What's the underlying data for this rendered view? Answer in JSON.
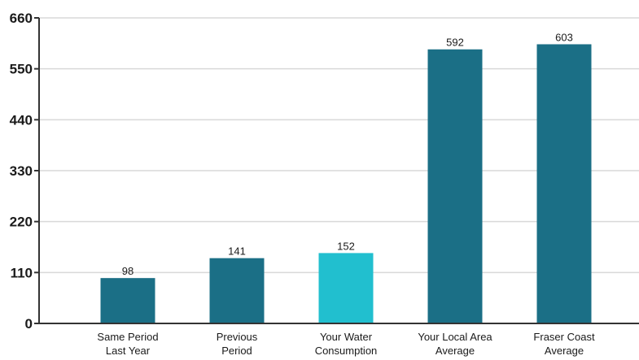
{
  "chart_data": {
    "type": "bar",
    "categories": [
      [
        "Same Period",
        "Last Year"
      ],
      [
        "Previous",
        "Period"
      ],
      [
        "Your Water",
        "Consumption"
      ],
      [
        "Your Local Area",
        "Average"
      ],
      [
        "Fraser Coast",
        "Average"
      ]
    ],
    "values": [
      98,
      141,
      152,
      592,
      603
    ],
    "value_labels": [
      "98",
      "141",
      "152",
      "592",
      "603"
    ],
    "yticks": [
      0,
      110,
      220,
      330,
      440,
      550,
      660
    ],
    "ytick_labels": [
      "0",
      "110",
      "220",
      "330",
      "440",
      "550",
      "660"
    ],
    "ylim": [
      0,
      660
    ],
    "grid": true,
    "title": "",
    "xlabel": "",
    "ylabel": "",
    "colors": {
      "bar": "#1b6f86",
      "highlight": "#21bfcf",
      "grid": "#d9d9d9",
      "axis": "#333333"
    },
    "highlight_index": 2
  }
}
